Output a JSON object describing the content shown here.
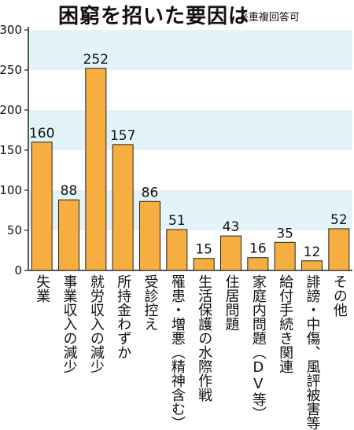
{
  "chart_data": {
    "type": "bar",
    "title": "困窮を招いた要因は",
    "subtitle": "※重複回答可",
    "categories": [
      "失業",
      "事業収入の減少",
      "就労収入の減少",
      "所持金わずか",
      "受診控え",
      "罹患・増悪（精神含む）",
      "生活保護の水際作戦",
      "住居問題",
      "家庭内問題（DV等）",
      "給付手続き関連",
      "誹謗・中傷、風評被害等",
      "その他"
    ],
    "values": [
      160,
      88,
      252,
      157,
      86,
      51,
      15,
      43,
      16,
      35,
      12,
      52
    ],
    "ylim": [
      0,
      300
    ],
    "yticks": [
      0,
      50,
      100,
      150,
      200,
      250,
      300
    ],
    "xlabel": "",
    "ylabel": "",
    "colors": {
      "bar": "#F5AE3F",
      "bar_edge": "#222222",
      "band": "#E3F4F8",
      "axis": "#222222"
    }
  }
}
